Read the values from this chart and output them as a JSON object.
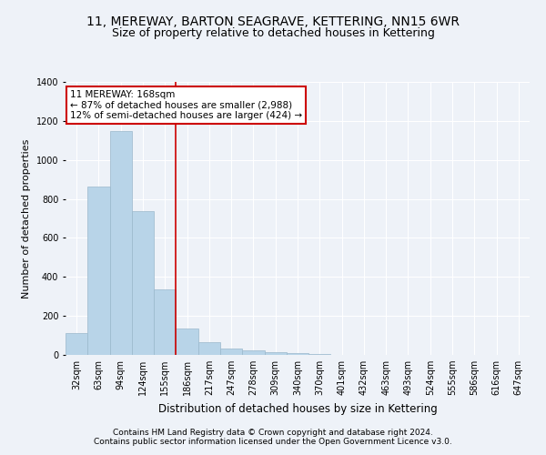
{
  "title": "11, MEREWAY, BARTON SEAGRAVE, KETTERING, NN15 6WR",
  "subtitle": "Size of property relative to detached houses in Kettering",
  "xlabel": "Distribution of detached houses by size in Kettering",
  "ylabel": "Number of detached properties",
  "footer_line1": "Contains HM Land Registry data © Crown copyright and database right 2024.",
  "footer_line2": "Contains public sector information licensed under the Open Government Licence v3.0.",
  "categories": [
    "32sqm",
    "63sqm",
    "94sqm",
    "124sqm",
    "155sqm",
    "186sqm",
    "217sqm",
    "247sqm",
    "278sqm",
    "309sqm",
    "340sqm",
    "370sqm",
    "401sqm",
    "432sqm",
    "463sqm",
    "493sqm",
    "524sqm",
    "555sqm",
    "586sqm",
    "616sqm",
    "647sqm"
  ],
  "values": [
    110,
    863,
    1148,
    737,
    338,
    135,
    65,
    35,
    22,
    15,
    8,
    6,
    0,
    0,
    0,
    0,
    0,
    0,
    0,
    0,
    0
  ],
  "bar_color": "#b8d4e8",
  "bar_edge_color": "#9ab8cc",
  "bar_linewidth": 0.5,
  "vline_color": "#cc0000",
  "vline_pos": 4.5,
  "annotation_line1": "11 MEREWAY: 168sqm",
  "annotation_line2": "← 87% of detached houses are smaller (2,988)",
  "annotation_line3": "12% of semi-detached houses are larger (424) →",
  "annotation_box_facecolor": "#ffffff",
  "annotation_box_edgecolor": "#cc0000",
  "ylim": [
    0,
    1400
  ],
  "yticks": [
    0,
    200,
    400,
    600,
    800,
    1000,
    1200,
    1400
  ],
  "background_color": "#eef2f8",
  "grid_color": "#ffffff",
  "title_fontsize": 10,
  "subtitle_fontsize": 9,
  "xlabel_fontsize": 8.5,
  "ylabel_fontsize": 8,
  "tick_fontsize": 7,
  "annotation_fontsize": 7.5,
  "footer_fontsize": 6.5
}
